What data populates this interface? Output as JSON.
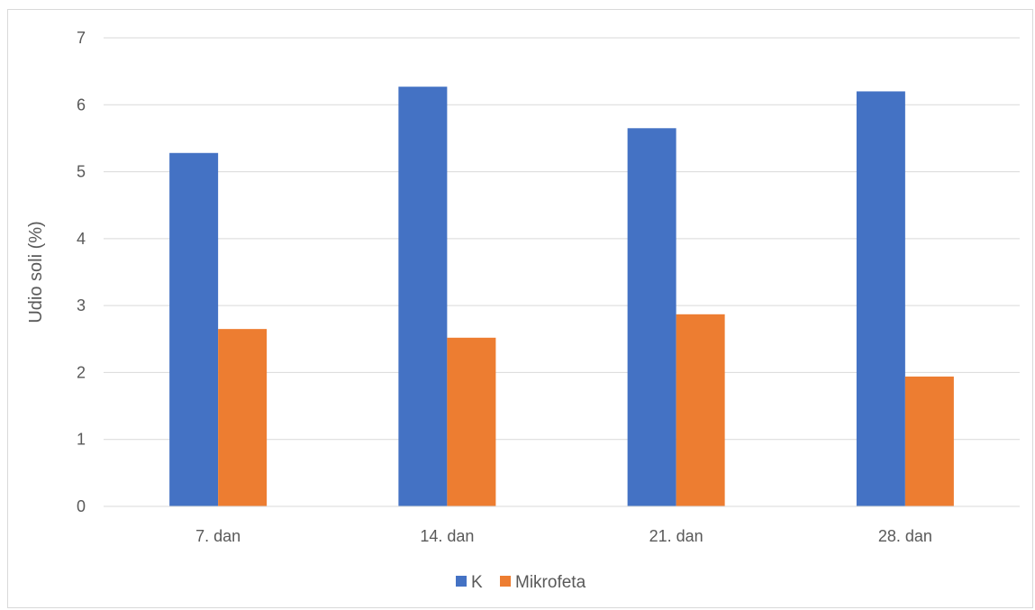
{
  "chart_data": {
    "type": "bar",
    "title": "",
    "xlabel": "",
    "ylabel": "Udio soli (%)",
    "categories": [
      "7. dan",
      "14. dan",
      "21. dan",
      "28. dan"
    ],
    "series": [
      {
        "name": "K",
        "color": "#4472C4",
        "values": [
          5.28,
          6.27,
          5.65,
          6.2
        ]
      },
      {
        "name": "Mikrofeta",
        "color": "#ED7D31",
        "values": [
          2.65,
          2.52,
          2.87,
          1.94
        ]
      }
    ],
    "ylim": [
      0,
      7
    ],
    "yticks": [
      0,
      1,
      2,
      3,
      4,
      5,
      6,
      7
    ],
    "grid": true,
    "legend_position": "bottom"
  }
}
